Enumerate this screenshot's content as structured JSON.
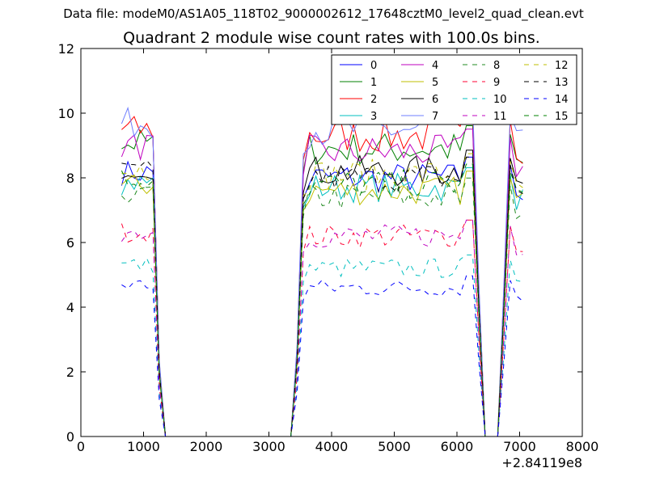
{
  "suptitle": "Data file: modeM0/AS1A05_118T02_9000002612_17648cztM0_level2_quad_clean.evt",
  "chart_data": {
    "type": "line",
    "title": "Quadrant 2 module wise count rates with 100.0s bins.",
    "xlabel": "",
    "ylabel": "",
    "xlim": [
      0,
      8000
    ],
    "ylim": [
      0,
      12
    ],
    "x_offset_label": "+2.84119e8",
    "xticks": [
      0,
      1000,
      2000,
      3000,
      4000,
      5000,
      6000,
      7000,
      8000
    ],
    "yticks": [
      0,
      2,
      4,
      6,
      8,
      10,
      12
    ],
    "grid": false,
    "legend_position": "top-right",
    "legend_columns": 4,
    "series": [
      {
        "name": "0",
        "color": "#0000ff",
        "dash": "solid",
        "level": 8.0
      },
      {
        "name": "1",
        "color": "#008000",
        "dash": "solid",
        "level": 8.9
      },
      {
        "name": "2",
        "color": "#ff0000",
        "dash": "solid",
        "level": 9.3
      },
      {
        "name": "3",
        "color": "#00bfbf",
        "dash": "solid",
        "level": 7.7
      },
      {
        "name": "4",
        "color": "#bf00bf",
        "dash": "solid",
        "level": 8.8
      },
      {
        "name": "5",
        "color": "#bfbf00",
        "dash": "solid",
        "level": 7.6
      },
      {
        "name": "6",
        "color": "#000000",
        "dash": "solid",
        "level": 8.2
      },
      {
        "name": "7",
        "color": "#6f7fff",
        "dash": "solid",
        "level": 9.5
      },
      {
        "name": "8",
        "color": "#228b22",
        "dash": "dashed",
        "level": 7.4
      },
      {
        "name": "9",
        "color": "#ff0033",
        "dash": "dashed",
        "level": 6.2
      },
      {
        "name": "10",
        "color": "#00bfbf",
        "dash": "dashed",
        "level": 5.2
      },
      {
        "name": "11",
        "color": "#bf00bf",
        "dash": "dashed",
        "level": 6.2
      },
      {
        "name": "12",
        "color": "#bfbf00",
        "dash": "dashed",
        "level": 8.1
      },
      {
        "name": "13",
        "color": "#000000",
        "dash": "dashed",
        "level": 8.0
      },
      {
        "name": "14",
        "color": "#0000ff",
        "dash": "dashed",
        "level": 4.6
      },
      {
        "name": "15",
        "color": "#008000",
        "dash": "dashed",
        "level": 7.8
      }
    ]
  }
}
